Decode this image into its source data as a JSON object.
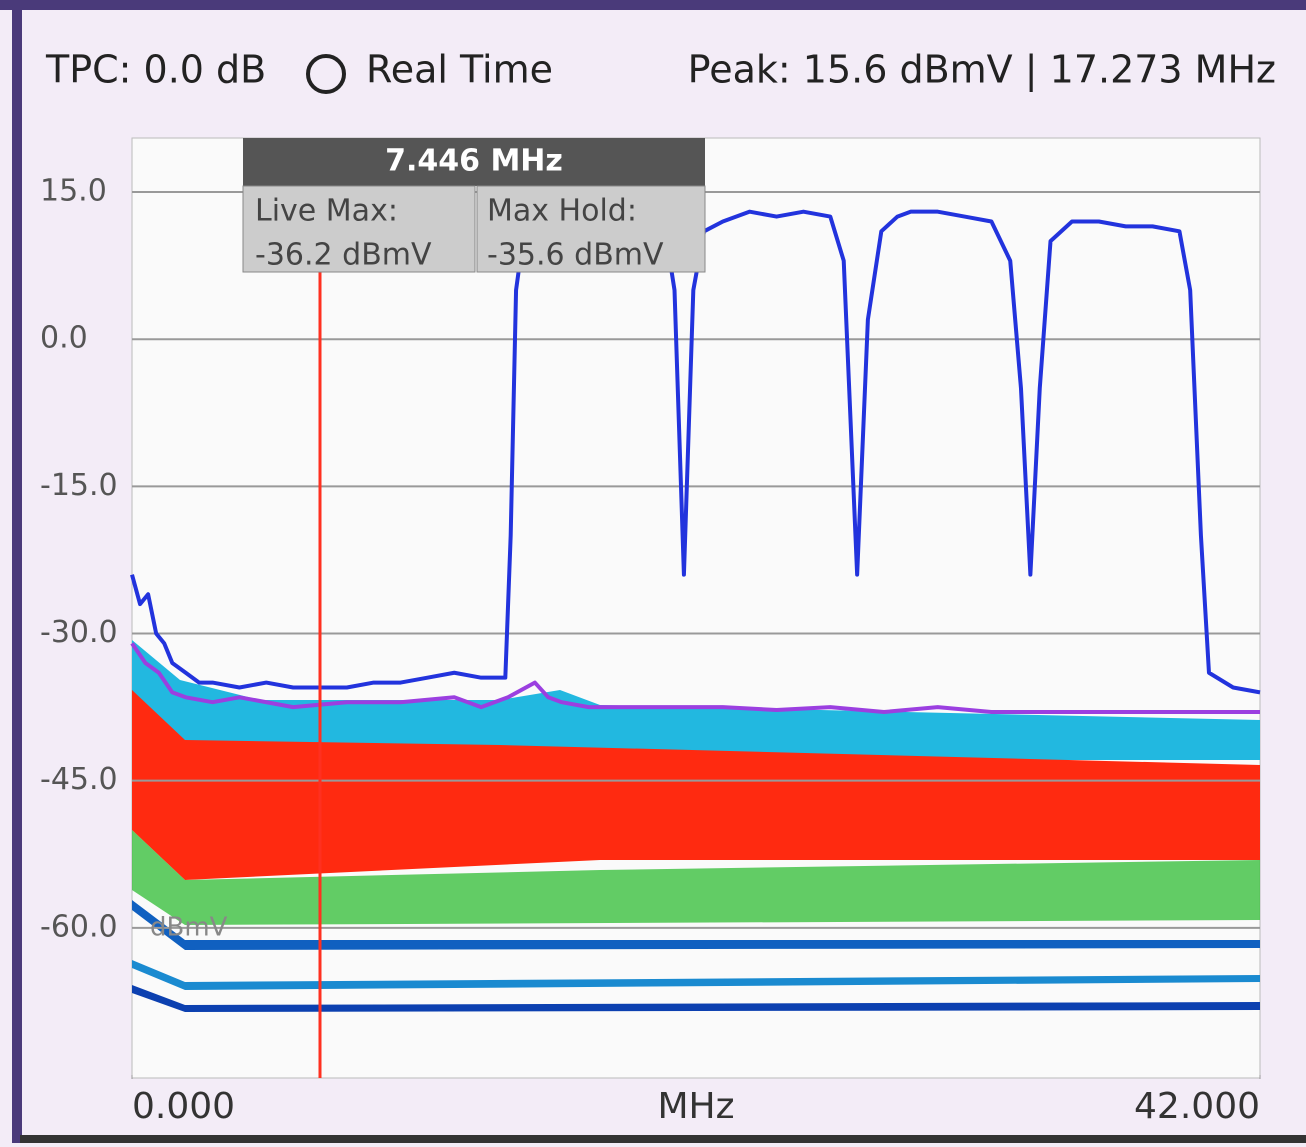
{
  "header": {
    "tpc": "TPC: 0.0 dB",
    "mode": "Real Time",
    "peak": "Peak: 15.6 dBmV | 17.273 MHz"
  },
  "marker": {
    "title": "7.446 MHz",
    "live_label": "Live Max:",
    "live_value": "-36.2 dBmV",
    "hold_label": "Max Hold:",
    "hold_value": "-35.6 dBmV"
  },
  "chart_data": {
    "type": "line",
    "y_unit": "dBmV",
    "x_label": "MHz",
    "grid": true,
    "xlim": [
      0,
      42
    ],
    "xticks": [
      {
        "value": 0,
        "label": "0.000"
      },
      {
        "value": 42,
        "label": "42.000"
      }
    ],
    "ylim": [
      -75,
      20
    ],
    "yticks": [
      {
        "value": 15,
        "label": "15.0"
      },
      {
        "value": 0,
        "label": "0.0"
      },
      {
        "value": -15,
        "label": "-15.0"
      },
      {
        "value": -30,
        "label": "-30.0"
      },
      {
        "value": -45,
        "label": "-45.0"
      },
      {
        "value": -60,
        "label": "-60.0"
      }
    ],
    "series": [
      {
        "color": "#9b3fe0",
        "x": [
          0,
          0.5,
          1,
          1.5,
          2,
          3,
          4,
          6,
          8,
          10,
          12,
          13,
          14,
          15,
          15.5,
          16,
          17,
          18,
          20,
          22,
          24,
          26,
          28,
          30,
          32,
          34,
          36,
          38,
          40,
          42
        ],
        "values": [
          -31,
          -33,
          -34,
          -36,
          -36.5,
          -37,
          -36.5,
          -37.5,
          -37,
          -37,
          -36.5,
          -37.5,
          -36.5,
          -35,
          -36.5,
          -37,
          -37.5,
          -37.5,
          -37.5,
          -37.5,
          -37.8,
          -37.5,
          -38,
          -37.5,
          -38,
          -38,
          -38,
          -38,
          -38,
          -38
        ]
      },
      {
        "color": "#2233dd",
        "x": [
          0,
          0.3,
          0.6,
          0.9,
          1.2,
          1.5,
          2,
          2.5,
          3,
          4,
          5,
          6,
          7,
          8,
          9,
          10,
          11,
          12,
          13,
          13.9,
          14.1,
          14.3,
          14.6,
          15,
          16,
          17,
          17.273,
          18,
          19,
          19.8,
          20.2,
          20.55,
          20.9,
          21.3,
          22,
          23,
          24,
          25,
          26,
          26.5,
          27,
          27.4,
          27.9,
          28.5,
          29,
          30,
          31,
          32,
          32.7,
          33.1,
          33.45,
          33.8,
          34.2,
          35,
          36,
          37,
          38,
          39,
          39.4,
          39.8,
          40.1,
          41,
          42
        ],
        "values": [
          -24,
          -27,
          -26,
          -30,
          -31,
          -33,
          -34,
          -35,
          -35,
          -35.5,
          -35,
          -35.5,
          -35.5,
          -35.5,
          -35,
          -35,
          -34.5,
          -34,
          -34.5,
          -34.5,
          -20,
          5,
          11,
          12,
          12,
          12.5,
          15.6,
          12,
          12.5,
          12,
          5,
          -24,
          5,
          11,
          12,
          13,
          12.5,
          13,
          12.5,
          8,
          -24,
          2,
          11,
          12.5,
          13,
          13,
          12.5,
          12,
          8,
          -5,
          -24,
          -5,
          10,
          12,
          12,
          11.5,
          11.5,
          11,
          5,
          -20,
          -34,
          -35.5,
          -36
        ]
      }
    ]
  }
}
